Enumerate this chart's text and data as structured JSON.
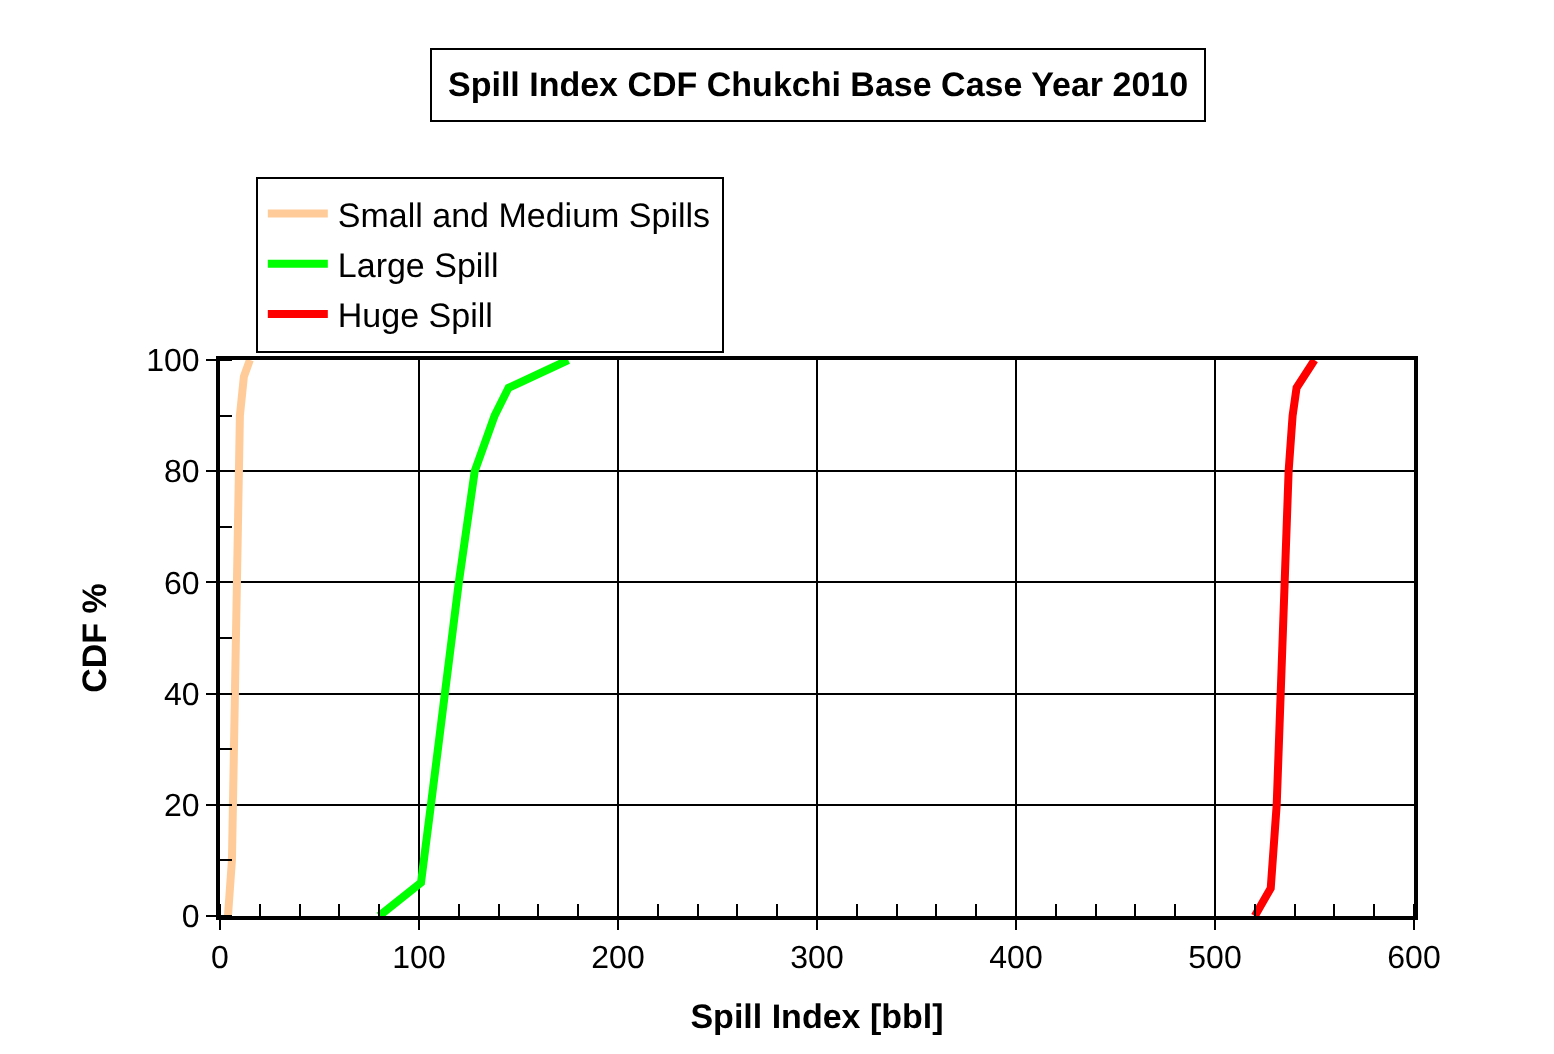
{
  "chart_data": {
    "type": "line",
    "title": "Spill Index CDF Chukchi Base Case Year 2010",
    "xlabel": "Spill Index [bbl]",
    "ylabel": "CDF %",
    "xlim": [
      0,
      600
    ],
    "xticks": [
      0,
      100,
      200,
      300,
      400,
      500,
      600
    ],
    "ylim": [
      0,
      100
    ],
    "yticks": [
      0,
      20,
      40,
      60,
      80,
      100
    ],
    "grid": true,
    "legend": "top left",
    "marker": "none",
    "line_style": "solid",
    "series": [
      {
        "name": "Small and Medium Spills",
        "color": "#ffcc99",
        "x": [
          4,
          6,
          7,
          8,
          9,
          10,
          12,
          15
        ],
        "values": [
          0,
          10,
          30,
          50,
          70,
          90,
          97,
          100
        ]
      },
      {
        "name": "Large Spill",
        "color": "#00ff00",
        "x": [
          80,
          101,
          106,
          113,
          120,
          128,
          138,
          145,
          175
        ],
        "values": [
          0,
          6,
          20,
          40,
          60,
          80,
          90,
          95,
          100
        ]
      },
      {
        "name": "Huge Spill",
        "color": "#ff0000",
        "x": [
          520,
          528,
          531,
          533,
          535,
          537,
          539,
          541,
          550
        ],
        "values": [
          0,
          5,
          20,
          40,
          60,
          80,
          90,
          95,
          100
        ]
      }
    ]
  }
}
